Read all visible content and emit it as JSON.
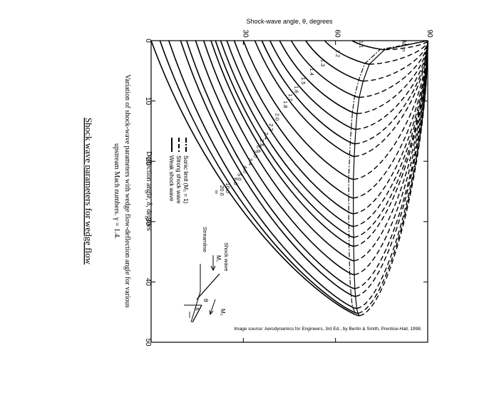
{
  "page": {
    "title": "Shock wave parameters for wedge flow",
    "caption_line1": "Variation of shock-wave parameters with wedge flow-deflection angle for various",
    "caption_line2": "upstream Mach numbers. γ = 1.4.",
    "image_source": "Image source: Aerodynamics for Engineers, 3rd Ed., by Bertin & Smith, Prentice-Hall, 1998."
  },
  "chart_data": {
    "type": "line",
    "xlabel": "Deflection angle, δ, degrees",
    "ylabel": "Shock-wave angle, θ, degrees",
    "xlim": [
      0,
      50
    ],
    "ylim": [
      0,
      90
    ],
    "xticks": [
      "0",
      "10",
      "20",
      "30",
      "40",
      "50"
    ],
    "yticks": [
      "30",
      "60",
      "90"
    ],
    "legend": {
      "position": "lower-left",
      "entries": [
        {
          "label": "Weak shock wave",
          "style": "solid"
        },
        {
          "label": "Strong shock wave",
          "style": "dashed"
        },
        {
          "label": "Sonic limit (M₂ = 1)",
          "style": "dashdot"
        }
      ]
    },
    "mach_label_prefix": "M₁ =",
    "series": [
      {
        "name": "1.1",
        "delta_max": 1.5,
        "theta_max": 76
      },
      {
        "name": "1.2",
        "delta_max": 3.9,
        "theta_max": 71
      },
      {
        "name": "1.3",
        "delta_max": 6.7,
        "theta_max": 69
      },
      {
        "name": "1.4",
        "delta_max": 9.4,
        "theta_max": 67.7
      },
      {
        "name": "1.5",
        "delta_max": 12.1,
        "theta_max": 67
      },
      {
        "name": "1.6",
        "delta_max": 14.7,
        "theta_max": 66.6
      },
      {
        "name": "1.7",
        "delta_max": 17.1,
        "theta_max": 66.3
      },
      {
        "name": "1.8",
        "delta_max": 19.2,
        "theta_max": 66.1
      },
      {
        "name": "2.0",
        "delta_max": 23.0,
        "theta_max": 65.8
      },
      {
        "name": "2.2",
        "delta_max": 26.1,
        "theta_max": 65.8
      },
      {
        "name": "2.4",
        "delta_max": 28.7,
        "theta_max": 65.8
      },
      {
        "name": "2.6",
        "delta_max": 30.8,
        "theta_max": 65.8
      },
      {
        "name": "2.8",
        "delta_max": 32.6,
        "theta_max": 65.9
      },
      {
        "name": "3.0",
        "delta_max": 34.1,
        "theta_max": 65.9
      },
      {
        "name": "3.4",
        "delta_max": 36.5,
        "theta_max": 66.0
      },
      {
        "name": "4.0",
        "delta_max": 38.8,
        "theta_max": 66.1
      },
      {
        "name": "5.0",
        "delta_max": 41.1,
        "theta_max": 66.3
      },
      {
        "name": "6.0",
        "delta_max": 42.4,
        "theta_max": 66.5
      },
      {
        "name": "10.0",
        "delta_max": 44.4,
        "theta_max": 66.9
      },
      {
        "name": "20.0",
        "delta_max": 45.2,
        "theta_max": 67.3
      },
      {
        "name": "∞",
        "delta_max": 45.6,
        "theta_max": 67.8
      }
    ],
    "inset": {
      "shock_wave": "Shock wave",
      "streamline": "Streamline",
      "m1": "M₁",
      "m2": "M₂",
      "theta": "θ",
      "delta": "δ"
    }
  }
}
